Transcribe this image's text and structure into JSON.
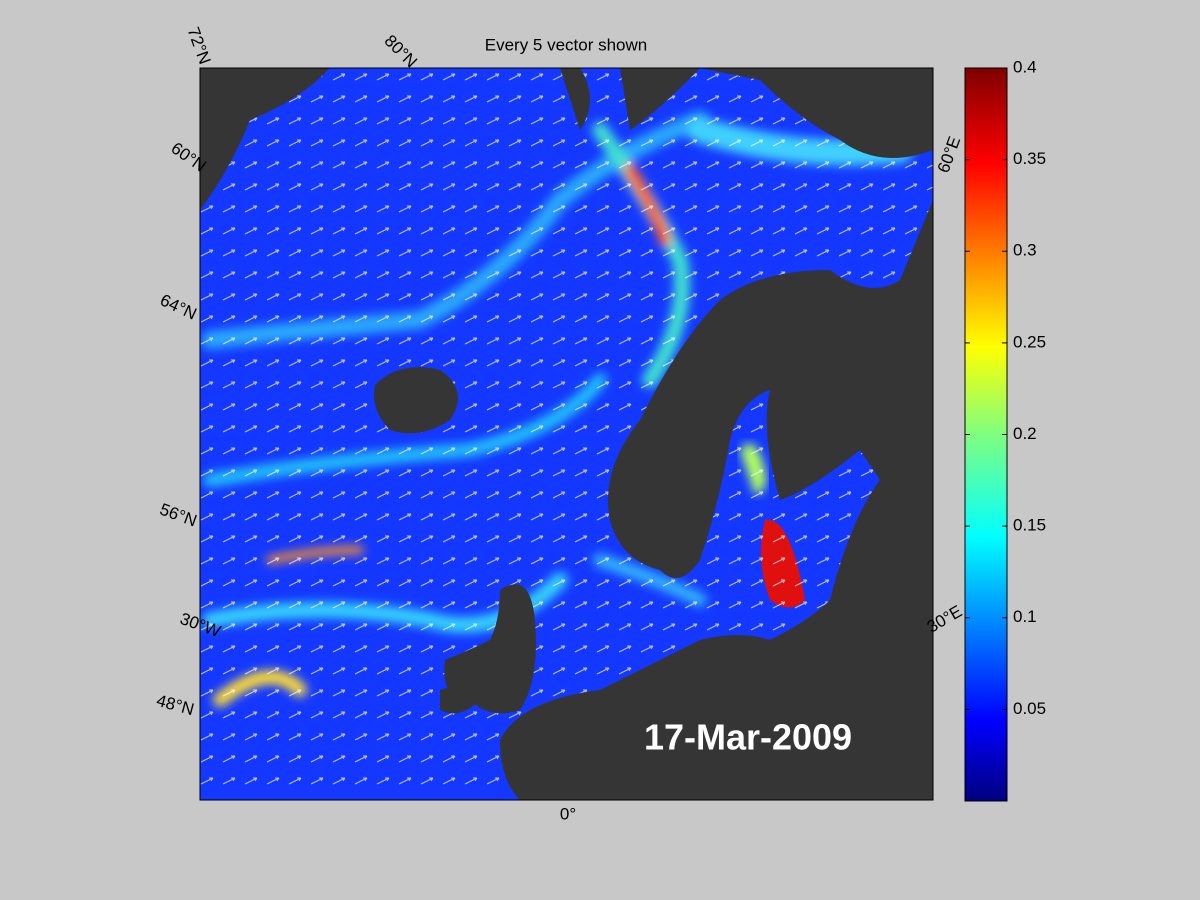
{
  "map": {
    "title": "Every 5 vector shown",
    "date": "17-Mar-2009",
    "graticule_labels": [
      "72°N",
      "80°N",
      "60°N",
      "64°N",
      "56°N",
      "30°W",
      "48°N",
      "0°",
      "30°E",
      "60°E"
    ],
    "colorbar": {
      "lim": [
        0,
        0.4
      ],
      "ticks": [
        0.05,
        0.1,
        0.15,
        0.2,
        0.25,
        0.3,
        0.35,
        0.4
      ],
      "colormap": "jet"
    }
  }
}
